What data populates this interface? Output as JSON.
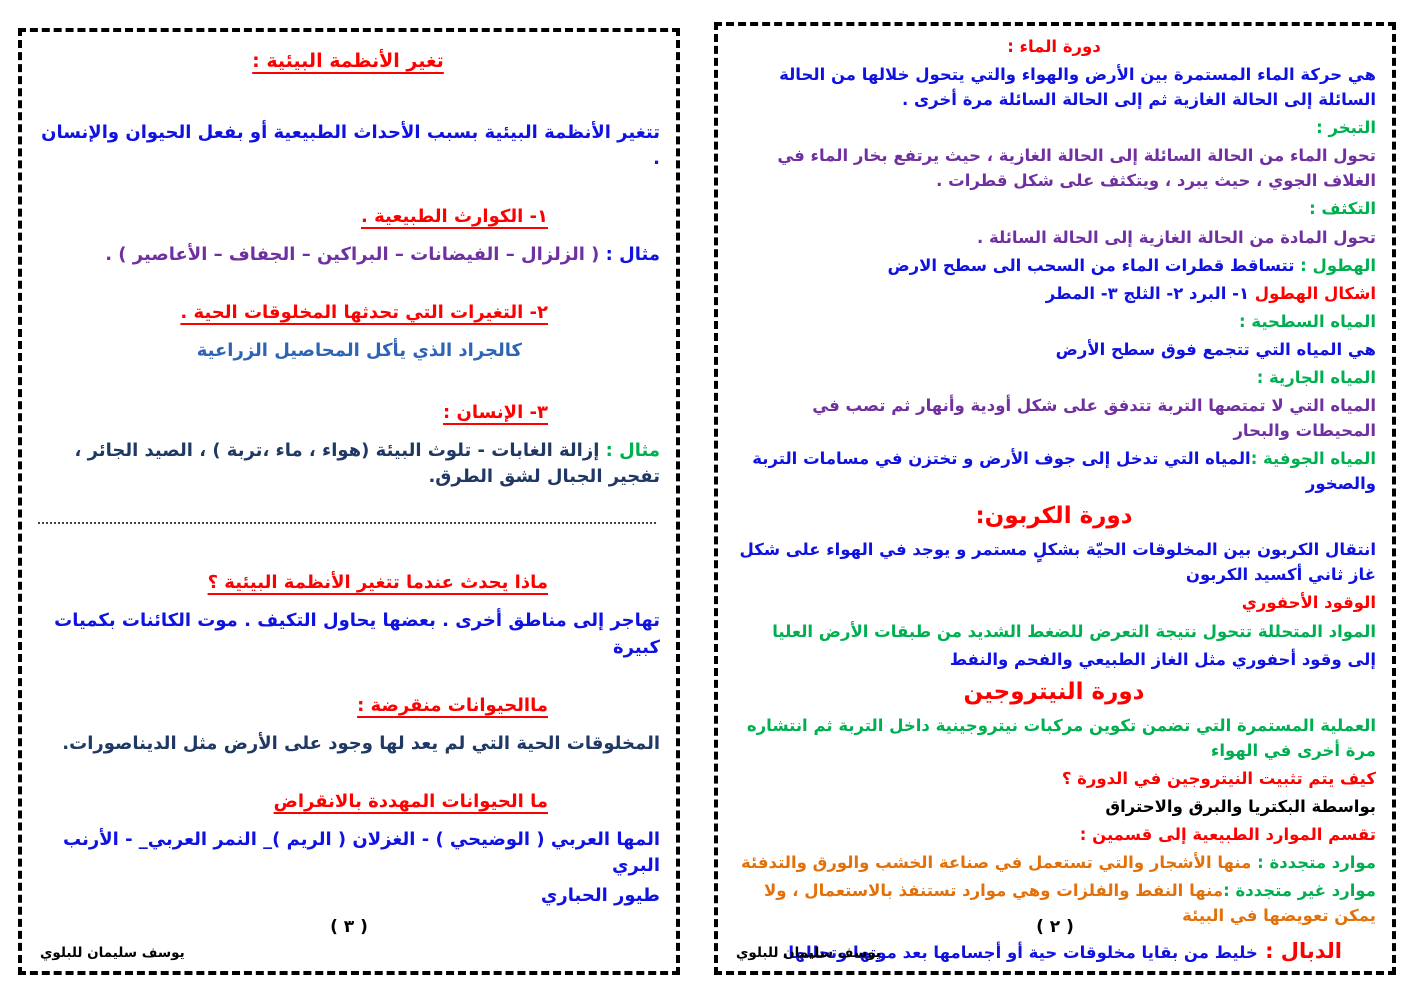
{
  "colors": {
    "red": "#fe0000",
    "blue": "#0f12e0",
    "green": "#00b050",
    "purple": "#7030a0",
    "orange": "#e3710a",
    "navy": "#1f3864",
    "steel": "#2e64b5",
    "black": "#000000"
  },
  "page_right": {
    "number_label": "( ٢ )",
    "credit": "يوسف سليمان للبلوي",
    "lines": [
      {
        "style": "b",
        "center": true,
        "segments": [
          {
            "t": "دورة الماء :",
            "c": "red"
          }
        ]
      },
      {
        "style": "b",
        "segments": [
          {
            "t": "هي حركة الماء المستمرة بين الأرض والهواء والتي يتحول خلالها من الحالة السائلة إلى الحالة الغازية ثم إلى الحالة السائلة مرة أخرى .",
            "c": "blue"
          }
        ]
      },
      {
        "style": "b",
        "segments": [
          {
            "t": "التبخر :",
            "c": "green"
          }
        ]
      },
      {
        "style": "b",
        "segments": [
          {
            "t": "تحول الماء من الحالة السائلة إلى الحالة الغازية ، حيث يرتفع بخار الماء في الغلاف الجوي ، حيث يبرد ، ويتكثف على شكل قطرات .",
            "c": "purple"
          }
        ]
      },
      {
        "style": "b",
        "segments": [
          {
            "t": "التكثف :",
            "c": "green"
          }
        ]
      },
      {
        "style": "b",
        "segments": [
          {
            "t": "تحول المادة من الحالة الغازية إلى الحالة السائلة .",
            "c": "purple"
          }
        ]
      },
      {
        "style": "b",
        "segments": [
          {
            "t": "الهطول : ",
            "c": "green"
          },
          {
            "t": "تتساقط قطرات الماء من السحب الى سطح الارض",
            "c": "blue"
          }
        ]
      },
      {
        "style": "b",
        "segments": [
          {
            "t": "اشكال الهطول   ",
            "c": "red"
          },
          {
            "t": "١- البرد      ٢- الثلج     ٣- المطر",
            "c": "blue"
          }
        ]
      },
      {
        "style": "b",
        "segments": [
          {
            "t": "المياه السطحية :",
            "c": "green"
          }
        ]
      },
      {
        "style": "b",
        "segments": [
          {
            "t": "هي المياه التي تتجمع فوق سطح الأرض",
            "c": "blue"
          }
        ]
      },
      {
        "style": "b",
        "segments": [
          {
            "t": "المياه الجارية :",
            "c": "green"
          }
        ]
      },
      {
        "style": "b",
        "segments": [
          {
            "t": "المياه  التي لا تمتصها التربة تتدفق على شكل أودية وأنهار ثم  تصب في المحيطات والبحار",
            "c": "purple"
          }
        ]
      },
      {
        "style": "b",
        "segments": [
          {
            "t": "المياه الجوفية :",
            "c": "green"
          },
          {
            "t": "المياه  التي تدخل إلى جوف الأرض و تختزن في مسامات التربة والصخور",
            "c": "blue"
          }
        ]
      },
      {
        "style": "cyc",
        "segments": [
          {
            "t": "دورة الكربون:",
            "c": "red"
          }
        ]
      },
      {
        "style": "b",
        "segments": [
          {
            "t": "انتقال الكربون بين المخلوقات الحيّة بشكلٍ مستمر و يوجد في الهواء على شكل غاز ثاني أكسيد الكربون",
            "c": "blue"
          }
        ]
      },
      {
        "style": "b",
        "segments": [
          {
            "t": "الوقود الأحفوري",
            "c": "red"
          }
        ]
      },
      {
        "style": "b",
        "segments": [
          {
            "t": "المواد المتحللة تتحول نتيجة التعرض للضغط الشديد من طبقات الأرض العليا",
            "c": "green"
          }
        ]
      },
      {
        "style": "b",
        "segments": [
          {
            "t": "إلى وقود أحفوري مثل الغاز الطبيعي والفحم والنفط",
            "c": "blue"
          }
        ]
      },
      {
        "style": "cyc",
        "segments": [
          {
            "t": "دورة النيتروجين",
            "c": "red"
          }
        ]
      },
      {
        "style": "b",
        "segments": [
          {
            "t": "العملية المستمرة التي تضمن تكوين مركبات نيتروجينية داخل التربة  ثم انتشاره  مرة أخرى في الهواء",
            "c": "green"
          }
        ]
      },
      {
        "style": "b",
        "segments": [
          {
            "t": "كيف يتم تثبيت النيتروجين في الدورة ؟",
            "c": "red"
          }
        ]
      },
      {
        "style": "b",
        "segments": [
          {
            "t": "بواسطة البكتريا والبرق والاحتراق",
            "c": "black"
          }
        ]
      },
      {
        "style": "b",
        "segments": [
          {
            "t": "تقسم الموارد الطبيعية إلى قسمين :",
            "c": "red"
          }
        ]
      },
      {
        "style": "b",
        "segments": [
          {
            "t": "موارد متجددة : ",
            "c": "green"
          },
          {
            "t": "منها الأشجار والتي تستعمل في صناعة الخشب والورق والتدفئة",
            "c": "orange"
          }
        ]
      },
      {
        "style": "b",
        "segments": [
          {
            "t": "موارد غير متجددة :",
            "c": "green"
          },
          {
            "t": "منها النفط والفلزات وهي موارد تستنفذ بالاستعمال ، ولا يمكن تعويضها في البيئة",
            "c": "orange"
          }
        ]
      },
      {
        "style": "dabal",
        "segments": [
          {
            "t": "الدبال :   ",
            "c": "red",
            "lg": true
          },
          {
            "t": "خليط من بقايا مخلوقات حية أو أجسامها بعد موتها وتحللها.",
            "c": "blue"
          }
        ]
      }
    ]
  },
  "page_left": {
    "number_label": "( ٣ )",
    "credit": "يوسف سليمان للبلوي",
    "lines": [
      {
        "style": "title",
        "segments": [
          {
            "t": "تغير الأنظمة البيئية :",
            "c": "red",
            "u": true
          }
        ]
      },
      {
        "style": "b",
        "segments": [
          {
            "t": "تتغير الأنظمة البيئية بسبب الأحداث الطبيعية أو بفعل الحيوان والإنسان .",
            "c": "blue"
          }
        ]
      },
      {
        "style": "h",
        "segments": [
          {
            "t": "١-  الكوارث الطبيعية .",
            "c": "red",
            "u": true
          }
        ]
      },
      {
        "style": "b",
        "segments": [
          {
            "t": "مثال : ",
            "c": "blue"
          },
          {
            "t": "( الزلزال – الفيضانات – البراكين – الجفاف – الأعاصير ) .",
            "c": "purple"
          }
        ]
      },
      {
        "style": "h",
        "segments": [
          {
            "t": "٢-  التغيرات التي تحدثها المخلوقات الحية .",
            "c": "red",
            "u": true
          }
        ]
      },
      {
        "style": "sub",
        "segments": [
          {
            "t": "كالجراد الذي يأكل المحاصيل الزراعية",
            "c": "steel"
          }
        ]
      },
      {
        "style": "h",
        "segments": [
          {
            "t": "٣- الإنسان :",
            "c": "red",
            "u": true
          }
        ]
      },
      {
        "style": "b",
        "segments": [
          {
            "t": "مثال : ",
            "c": "green"
          },
          {
            "t": "إزالة الغابات - تلوث البيئة (هواء ، ماء ،تربة ) ، الصيد الجائر ، تفجير الجبال لشق الطرق.",
            "c": "navy"
          }
        ]
      },
      {
        "style": "divider"
      },
      {
        "style": "h",
        "segments": [
          {
            "t": "ماذا يحدث عندما تتغير الأنظمة البيئية ؟",
            "c": "red",
            "u": true
          }
        ]
      },
      {
        "style": "b",
        "segments": [
          {
            "t": "تهاجر إلى مناطق أخرى  . بعضها يحاول التكيف . موت الكائنات بكميات كبيرة",
            "c": "blue"
          }
        ]
      },
      {
        "style": "h",
        "segments": [
          {
            "t": "ماالحيوانات منقرضة :",
            "c": "red",
            "u": true
          }
        ]
      },
      {
        "style": "b",
        "segments": [
          {
            "t": "المخلوقات الحية التي لم يعد لها وجود على الأرض مثل الديناصورات.",
            "c": "navy"
          }
        ]
      },
      {
        "style": "h",
        "segments": [
          {
            "t": "ما الحيوانات المهددة بالانقراض",
            "c": "red",
            "u": true
          }
        ]
      },
      {
        "style": "b0",
        "segments": [
          {
            "t": "المها العربي ( الوضيحي )  -  الغزلان ( الريم )_ النمر العربي_  -  الأرنب البري",
            "c": "blue"
          }
        ]
      },
      {
        "style": "b",
        "segments": [
          {
            "t": "طيور الحباري",
            "c": "blue"
          }
        ]
      }
    ]
  }
}
